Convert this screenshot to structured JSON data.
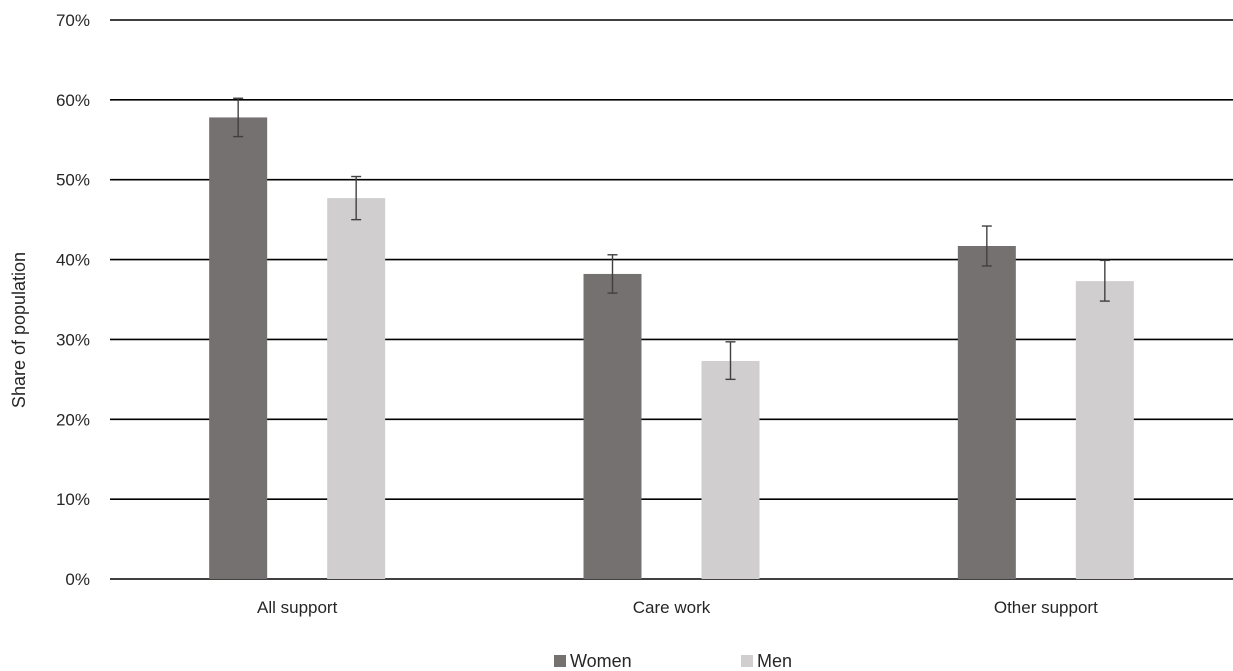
{
  "chart_data": {
    "type": "bar",
    "title": "",
    "xlabel": "",
    "ylabel": "Share of population",
    "ylim": [
      0,
      70
    ],
    "y_ticks": [
      "0%",
      "10%",
      "20%",
      "30%",
      "40%",
      "50%",
      "60%",
      "70%"
    ],
    "y_tick_values": [
      0,
      10,
      20,
      30,
      40,
      50,
      60,
      70
    ],
    "categories": [
      "All support",
      "Care work",
      "Other support"
    ],
    "series": [
      {
        "name": "Women",
        "color": "#767171",
        "values": [
          57.8,
          38.2,
          41.7
        ],
        "error_low": [
          55.4,
          35.8,
          39.2
        ],
        "error_high": [
          60.2,
          40.6,
          44.2
        ]
      },
      {
        "name": "Men",
        "color": "#d0cece",
        "values": [
          47.7,
          27.3,
          37.3
        ],
        "error_low": [
          45.0,
          25.0,
          34.8
        ],
        "error_high": [
          50.4,
          29.7,
          39.9
        ]
      }
    ],
    "grid": true,
    "legend_position": "bottom"
  }
}
